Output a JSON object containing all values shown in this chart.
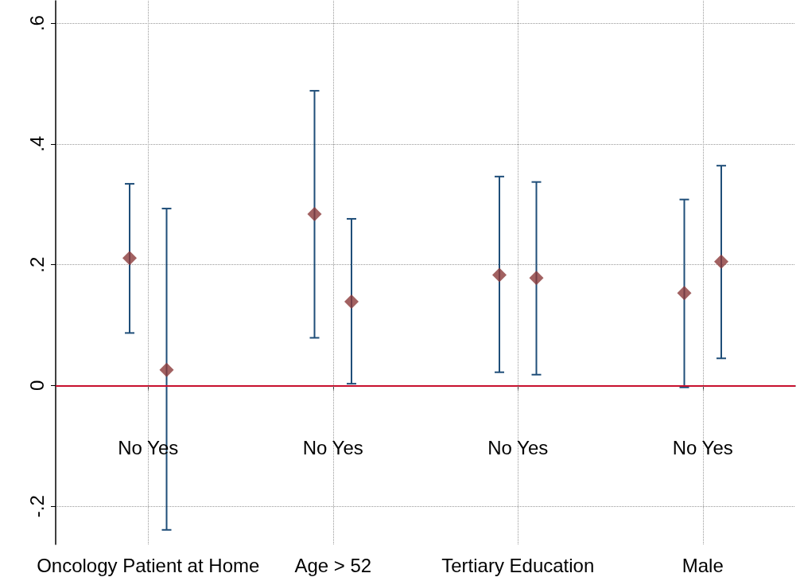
{
  "chart_data": {
    "type": "scatter",
    "categories": [
      "Oncology Patient at Home",
      "Age > 52",
      "Tertiary Education",
      "Male"
    ],
    "series": [
      {
        "color": "#8b3a3a",
        "values": [
          0.211,
          0.284,
          0.183,
          0.153
        ],
        "errors": [
          [
            0.087,
            0.334
          ],
          [
            0.079,
            0.488
          ],
          [
            0.022,
            0.346
          ],
          [
            -0.003,
            0.308
          ]
        ]
      },
      {
        "color": "#8b3a3a",
        "values": [
          0.026,
          0.139,
          0.178,
          0.205
        ],
        "errors": [
          [
            -0.239,
            0.293
          ],
          [
            0.003,
            0.276
          ],
          [
            0.018,
            0.337
          ],
          [
            0.045,
            0.364
          ]
        ]
      }
    ],
    "ylim": [
      -0.263,
      0.637
    ],
    "yticks": [
      {
        "value": -0.2,
        "label": "-.2"
      },
      0,
      {
        "value": 0.2,
        "label": ".2"
      },
      {
        "value": 0.4,
        "label": ".4"
      },
      {
        "value": 0.6,
        "label": ".6"
      }
    ],
    "ref_lines": [
      {
        "axis": "y",
        "value": 0,
        "color": "#c8102e"
      }
    ],
    "annotations": [
      "No Yes",
      "No Yes",
      "No Yes",
      "No Yes"
    ],
    "grid": true,
    "marker": "diamond"
  }
}
